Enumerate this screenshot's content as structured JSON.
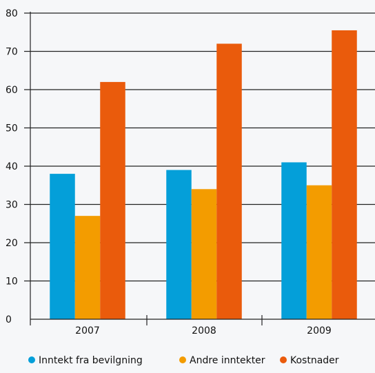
{
  "chart_data": {
    "type": "bar",
    "categories": [
      "2007",
      "2008",
      "2009"
    ],
    "series": [
      {
        "name": "Inntekt fra bevilgning",
        "values": [
          38,
          39,
          41
        ],
        "color": "#049fd9"
      },
      {
        "name": "Andre inntekter",
        "values": [
          27,
          34,
          35
        ],
        "color": "#f39c00"
      },
      {
        "name": "Kostnader",
        "values": [
          62,
          72,
          75.5
        ],
        "color": "#ea5b0c"
      }
    ],
    "yticks": [
      "0",
      "10",
      "20",
      "30",
      "40",
      "50",
      "60",
      "70",
      "80"
    ],
    "ylim": [
      0,
      80
    ],
    "grid": true,
    "legend_position": "bottom"
  }
}
